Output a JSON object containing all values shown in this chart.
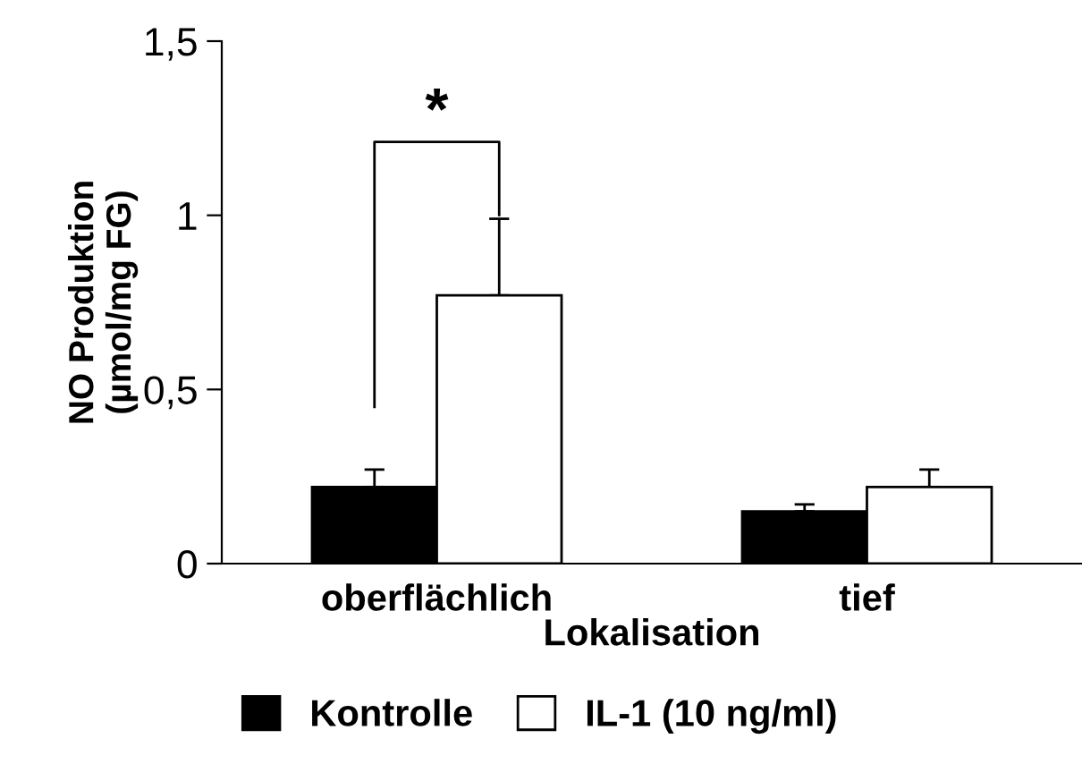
{
  "chart_data": {
    "type": "bar",
    "xlabel": "Lokalisation",
    "ylabel": "NO Produktion\n(µmol/mg FG)",
    "categories": [
      "oberflächlich",
      "tief"
    ],
    "series": [
      {
        "name": "Kontrolle",
        "color": "#000000",
        "values": [
          0.22,
          0.15
        ],
        "errors": [
          [
            0.22,
            0.27
          ],
          [
            0.15,
            0.17
          ]
        ]
      },
      {
        "name": "IL-1 (10 ng/ml)",
        "color": "#ffffff",
        "values": [
          0.77,
          0.22
        ],
        "errors": [
          [
            0.77,
            0.99
          ],
          [
            0.22,
            0.27
          ]
        ]
      }
    ],
    "ylim": [
      0,
      1.5
    ],
    "yticks": [
      0,
      {
        "value": 0.5,
        "label": "0,5"
      },
      1,
      {
        "value": 1.5,
        "label": "1,5"
      }
    ],
    "annotations": [
      "*"
    ],
    "grid": false,
    "legend": "bottom"
  }
}
